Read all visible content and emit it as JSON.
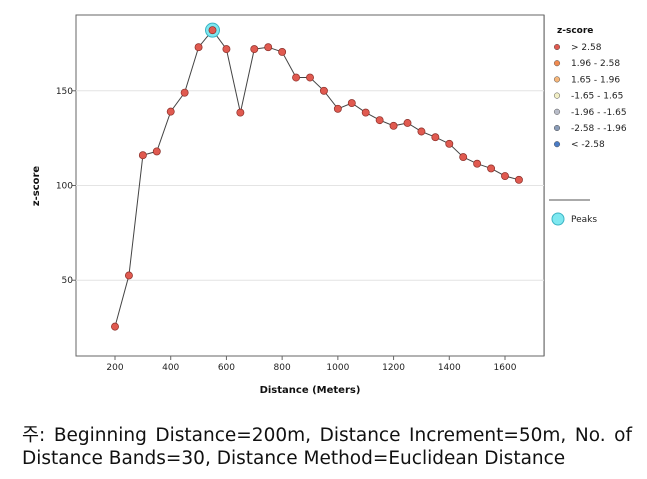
{
  "chart_data": {
    "type": "line",
    "xlabel": "Distance (Meters)",
    "ylabel": "z-score",
    "xlim": [
      60,
      1740
    ],
    "ylim": [
      10,
      190
    ],
    "x_ticks": [
      200,
      400,
      600,
      800,
      1000,
      1200,
      1400,
      1600
    ],
    "y_ticks": [
      50,
      100,
      150
    ],
    "grid": "horizontal",
    "series": [
      {
        "x": [
          200,
          250,
          300,
          350,
          400,
          450,
          500,
          550,
          600,
          650,
          700,
          750,
          800,
          850,
          900,
          950,
          1000,
          1050,
          1100,
          1150,
          1200,
          1250,
          1300,
          1350,
          1400,
          1450,
          1500,
          1550,
          1600,
          1650
        ],
        "values": [
          25.5,
          52.5,
          116,
          118,
          139,
          149,
          173,
          182,
          172,
          138.5,
          172,
          173,
          170.5,
          157,
          157,
          150,
          140.5,
          143.5,
          138.5,
          134.5,
          131.5,
          133,
          128.5,
          125.5,
          122,
          115,
          111.5,
          109,
          105,
          103
        ],
        "color": "#e05a50"
      }
    ],
    "peaks": [
      {
        "x": 550,
        "y": 182
      }
    ],
    "legend": {
      "title": "z-score",
      "position": "right",
      "items": [
        {
          "label": "> 2.58",
          "color": "#e05a50"
        },
        {
          "label": "1.96 - 2.58",
          "color": "#f08a50"
        },
        {
          "label": "1.65 - 1.96",
          "color": "#f6b67a"
        },
        {
          "label": "-1.65 - 1.65",
          "color": "#f2efc6"
        },
        {
          "label": "-1.96 - -1.65",
          "color": "#b8bcc8"
        },
        {
          "label": "-2.58 - -1.96",
          "color": "#8a9cb8"
        },
        {
          "label": "< -2.58",
          "color": "#4a7bc4"
        }
      ],
      "peaks_label": "Peaks",
      "peaks_color": "#7ee8f0"
    }
  },
  "caption": "주: Beginning Distance=200m, Distance Increment=50m, No. of Distance Bands=30, Distance Method=Euclidean Distance"
}
